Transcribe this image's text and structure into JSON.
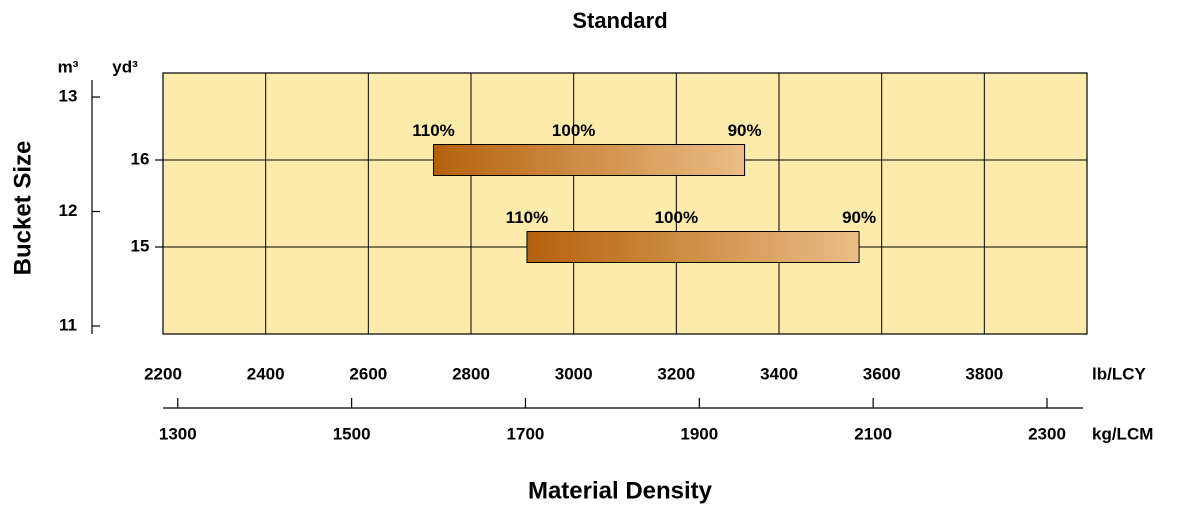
{
  "chart_data": {
    "type": "range_bar",
    "title": "Standard",
    "x_label": "Material Density",
    "y_label": "Bucket Size",
    "y_unit": "yd³",
    "y2_unit": "m³",
    "x_unit": "lb/LCY",
    "x2_unit": "kg/LCM",
    "xlim": [
      2200,
      4000
    ],
    "xticks": [
      2200,
      2400,
      2600,
      2800,
      3000,
      3200,
      3400,
      3600,
      3800
    ],
    "x2lim": [
      1283,
      2346
    ],
    "x2ticks": [
      1300,
      1500,
      1700,
      1900,
      2100,
      2300
    ],
    "ylim": [
      14,
      17
    ],
    "yticks": [
      15,
      16
    ],
    "y2lim": [
      10.93,
      13.21
    ],
    "y2ticks": [
      11,
      12,
      13
    ],
    "grid": true,
    "background": "#fcebaa",
    "gradient": [
      "#b5610c",
      "#ebbd85"
    ],
    "bars": [
      {
        "y": 16,
        "densities": [
          2727,
          3000,
          3333
        ],
        "labels": [
          "110%",
          "100%",
          "90%"
        ]
      },
      {
        "y": 15,
        "densities": [
          2909,
          3200,
          3556
        ],
        "labels": [
          "110%",
          "100%",
          "90%"
        ]
      }
    ]
  }
}
